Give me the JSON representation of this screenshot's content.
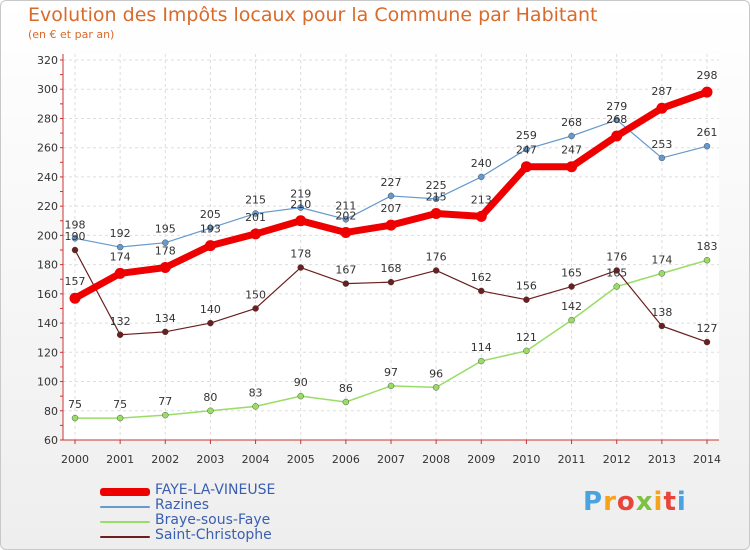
{
  "chart_data": {
    "type": "line",
    "title": "Evolution des Impôts locaux pour la Commune par Habitant",
    "subtitle": "(en € et par an)",
    "x": [
      "2000",
      "2001",
      "2002",
      "2003",
      "2004",
      "2005",
      "2006",
      "2007",
      "2008",
      "2009",
      "2010",
      "2011",
      "2012",
      "2013",
      "2014"
    ],
    "yticks": [
      60,
      80,
      100,
      120,
      140,
      160,
      180,
      200,
      220,
      240,
      260,
      280,
      300,
      320
    ],
    "ylim": [
      60,
      320
    ],
    "grid": true,
    "legend_position": "bottom-left",
    "series": [
      {
        "name": "FAYE-LA-VINEUSE",
        "color": "#ee0000",
        "values": [
          157,
          174,
          178,
          193,
          201,
          210,
          202,
          207,
          215,
          213,
          247,
          247,
          268,
          287,
          298
        ]
      },
      {
        "name": "Razines",
        "color": "#6699cc",
        "values": [
          198,
          192,
          195,
          205,
          215,
          219,
          211,
          227,
          225,
          240,
          259,
          268,
          279,
          253,
          261
        ]
      },
      {
        "name": "Braye-sous-Faye",
        "color": "#99dd66",
        "values": [
          75,
          75,
          77,
          80,
          83,
          90,
          86,
          97,
          96,
          114,
          121,
          142,
          165,
          174,
          183
        ]
      },
      {
        "name": "Saint-Christophe",
        "color": "#6b1f1f",
        "values": [
          190,
          132,
          134,
          140,
          150,
          178,
          167,
          168,
          176,
          162,
          156,
          165,
          176,
          138,
          127
        ]
      }
    ]
  },
  "logo": {
    "letters": [
      "P",
      "r",
      "o",
      "x",
      "i",
      "t",
      "i"
    ],
    "colors": [
      "#4aa3df",
      "#f7a21b",
      "#e8443a",
      "#7dc242",
      "#f7a21b",
      "#e8443a",
      "#4aa3df"
    ]
  }
}
